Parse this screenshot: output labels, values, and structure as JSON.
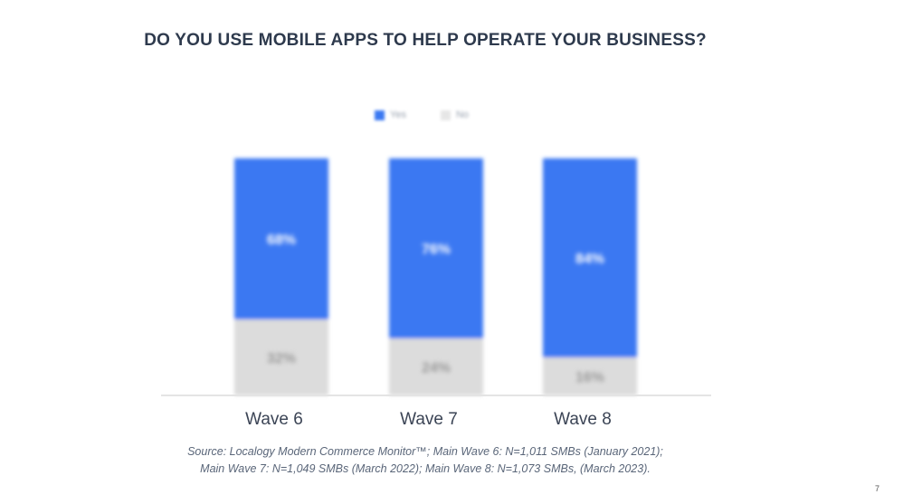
{
  "title": "DO YOU USE MOBILE APPS TO HELP OPERATE YOUR BUSINESS?",
  "source_line1": "Source: Localogy Modern Commerce Monitor™;  Main Wave 6: N=1,011 SMBs (January 2021);",
  "source_line2": "Main Wave 7: N=1,049 SMBs (March 2022); Main Wave 8: N=1,073 SMBs, (March 2023).",
  "page_number": "7",
  "colors": {
    "yes": "#3a78f2",
    "no": "#dcdcdc",
    "axis": "#e4e4e4"
  },
  "chart_data": {
    "type": "bar",
    "stacked": true,
    "title": "DO YOU USE MOBILE APPS TO HELP OPERATE YOUR BUSINESS?",
    "categories": [
      "Wave 6",
      "Wave 7",
      "Wave 8"
    ],
    "series": [
      {
        "name": "Yes",
        "values": [
          68,
          76,
          84
        ],
        "color": "#3a78f2"
      },
      {
        "name": "No",
        "values": [
          32,
          24,
          16
        ],
        "color": "#dcdcdc"
      }
    ],
    "ylim": [
      0,
      100
    ],
    "grid": false,
    "legend": "top-center",
    "data_labels": [
      "68%",
      "76%",
      "84%",
      "32%",
      "24%",
      "16%"
    ]
  }
}
